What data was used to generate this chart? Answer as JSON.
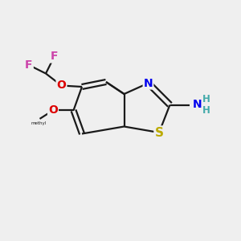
{
  "bg_color": "#efefef",
  "bond_color": "#1a1a1a",
  "bond_width": 1.6,
  "atom_colors": {
    "F": "#cc44aa",
    "O": "#dd0000",
    "N": "#0000ee",
    "S": "#bbaa00",
    "H": "#44aaaa",
    "C": "#1a1a1a"
  },
  "font_size_atoms": 10,
  "font_size_h": 8.5
}
